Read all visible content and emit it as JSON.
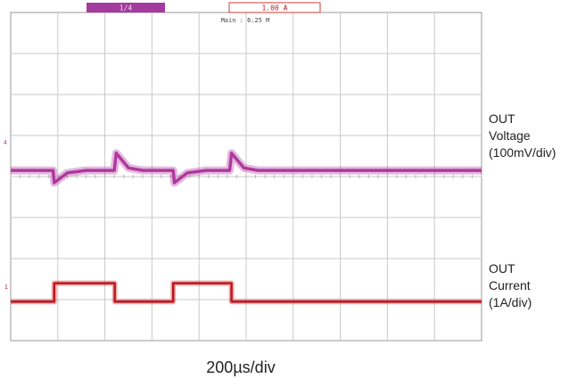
{
  "chart_data": {
    "type": "line",
    "title": "",
    "xlabel": "200µs/div",
    "grid": true,
    "x_divisions": 10,
    "y_divisions": 8,
    "x_per_div": "200µs",
    "x_range_us": [
      0,
      2000
    ],
    "series": [
      {
        "name_lines": [
          "OUT",
          "Voltage",
          "(100mV/div)"
        ],
        "color": "#b0389f",
        "channel_marker": "4",
        "points_us": [
          [
            0,
            0
          ],
          [
            180,
            0
          ],
          [
            185,
            -0.3
          ],
          [
            240,
            -0.06
          ],
          [
            320,
            0
          ],
          [
            440,
            0
          ],
          [
            448,
            0.42
          ],
          [
            500,
            0.06
          ],
          [
            560,
            0
          ],
          [
            690,
            0
          ],
          [
            695,
            -0.3
          ],
          [
            750,
            -0.06
          ],
          [
            830,
            0
          ],
          [
            930,
            0
          ],
          [
            938,
            0.42
          ],
          [
            990,
            0.06
          ],
          [
            1050,
            0
          ]
        ],
        "unit_note": "relative, in divisions"
      },
      {
        "name_lines": [
          "OUT",
          "Current",
          "(1A/div)"
        ],
        "color": "#c0141b",
        "channel_marker": "1",
        "low_level_div": 0,
        "high_level_div": 0.45,
        "edges_us": [
          [
            0,
            "low"
          ],
          [
            185,
            "high"
          ],
          [
            442,
            "low"
          ],
          [
            690,
            "high"
          ],
          [
            938,
            "low"
          ]
        ]
      }
    ],
    "readouts": {
      "top_left_box": "1/4",
      "top_right_box": "1.00 A",
      "center_readout": "Main : 6.25 M"
    }
  }
}
